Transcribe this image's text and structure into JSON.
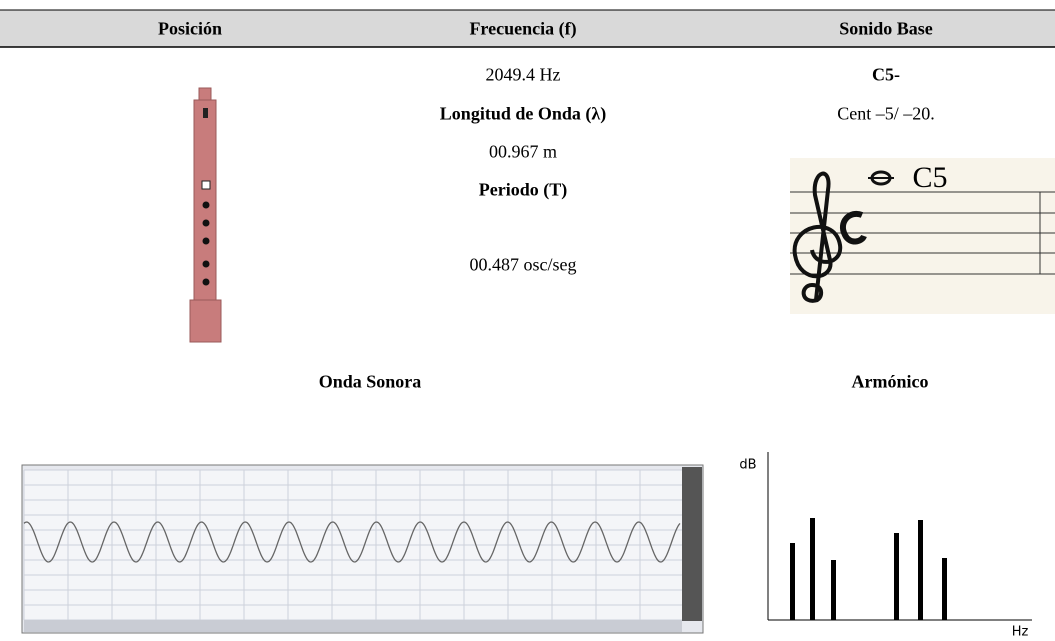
{
  "table": {
    "headers": [
      "Posición",
      "Frecuencia (f)",
      "Sonido Base"
    ],
    "frequency": "2049.4 Hz",
    "wavelength_label": "Longitud de Onda (λ)",
    "wavelength": "00.967 m",
    "period_label": "Periodo (T)",
    "period": "00.487 osc/seg",
    "note": "C5-",
    "cents": "Cent –5/ –20.",
    "staff_note": "C5"
  },
  "sections": {
    "wave_title": "Onda Sonora",
    "harmonic_title": "Armónico"
  },
  "harmonic_axes": {
    "y_label": "dB",
    "x_label": "Hz"
  }
}
